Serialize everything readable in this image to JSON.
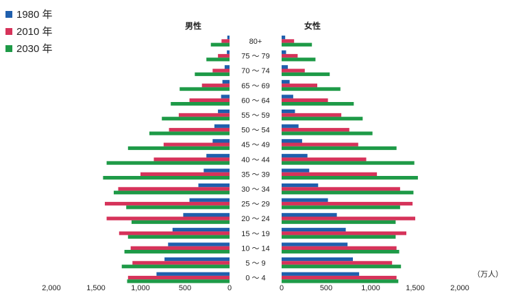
{
  "chart_data": {
    "type": "bar",
    "orientation": "horizontal-population-pyramid",
    "left_label": "男性",
    "right_label": "女性",
    "unit": "（万人）",
    "categories": [
      "80+",
      "75 ～ 79",
      "70 ～ 74",
      "65 ～ 69",
      "60 ～ 64",
      "55 ～ 59",
      "50 ～ 54",
      "45 ～ 49",
      "40 ～ 44",
      "35 ～ 39",
      "30 ～ 34",
      "25 ～ 29",
      "20 ～ 24",
      "15 ～ 19",
      "10 ～ 14",
      "5 ～ 9",
      "0 ～ 4"
    ],
    "series": [
      {
        "name": "1980 年",
        "color": "#1f5fad",
        "male": [
          25,
          30,
          55,
          80,
          95,
          130,
          170,
          190,
          260,
          290,
          350,
          450,
          520,
          640,
          690,
          730,
          820
        ],
        "female": [
          40,
          50,
          70,
          90,
          130,
          150,
          190,
          230,
          290,
          310,
          410,
          520,
          620,
          720,
          740,
          800,
          870
        ]
      },
      {
        "name": "2010 年",
        "color": "#d6335a",
        "male": [
          90,
          130,
          190,
          310,
          450,
          570,
          680,
          740,
          850,
          1000,
          1250,
          1400,
          1380,
          1240,
          1110,
          1090,
          1140
        ],
        "female": [
          140,
          180,
          260,
          400,
          520,
          670,
          760,
          860,
          950,
          1070,
          1330,
          1470,
          1500,
          1400,
          1290,
          1240,
          1290
        ]
      },
      {
        "name": "2030 年",
        "color": "#1e9a47",
        "male": [
          210,
          260,
          390,
          560,
          660,
          760,
          900,
          1140,
          1380,
          1420,
          1300,
          1160,
          1100,
          1140,
          1180,
          1210,
          1150
        ],
        "female": [
          340,
          380,
          540,
          660,
          810,
          910,
          1020,
          1290,
          1490,
          1530,
          1480,
          1330,
          1280,
          1280,
          1320,
          1340,
          1310
        ]
      }
    ],
    "male_axis": {
      "ticks": [
        "2,000",
        "1,500",
        "1,000",
        "500",
        "0"
      ],
      "xlim": [
        0,
        2000
      ]
    },
    "female_axis": {
      "ticks": [
        "0",
        "500",
        "1,000",
        "1,500",
        "2,000"
      ],
      "xlim": [
        0,
        2000
      ]
    },
    "grid": false,
    "legend_position": "top-left"
  }
}
